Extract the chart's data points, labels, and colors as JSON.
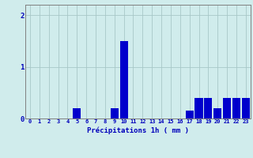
{
  "hours": [
    0,
    1,
    2,
    3,
    4,
    5,
    6,
    7,
    8,
    9,
    10,
    11,
    12,
    13,
    14,
    15,
    16,
    17,
    18,
    19,
    20,
    21,
    22,
    23
  ],
  "values": [
    0,
    0,
    0,
    0,
    0,
    0.2,
    0,
    0,
    0,
    0.2,
    1.5,
    0,
    0,
    0,
    0,
    0,
    0,
    0.15,
    0.4,
    0.4,
    0.2,
    0.4,
    0.4,
    0.4
  ],
  "bar_color": "#0000cc",
  "background_color": "#d0ecec",
  "grid_color": "#a8c8c8",
  "xlabel": "Précipitations 1h ( mm )",
  "ylim": [
    0,
    2.2
  ],
  "yticks": [
    0,
    1,
    2
  ],
  "xlim": [
    -0.5,
    23.5
  ],
  "xlabel_color": "#0000bb",
  "tick_color": "#0000bb",
  "axis_color": "#808080"
}
